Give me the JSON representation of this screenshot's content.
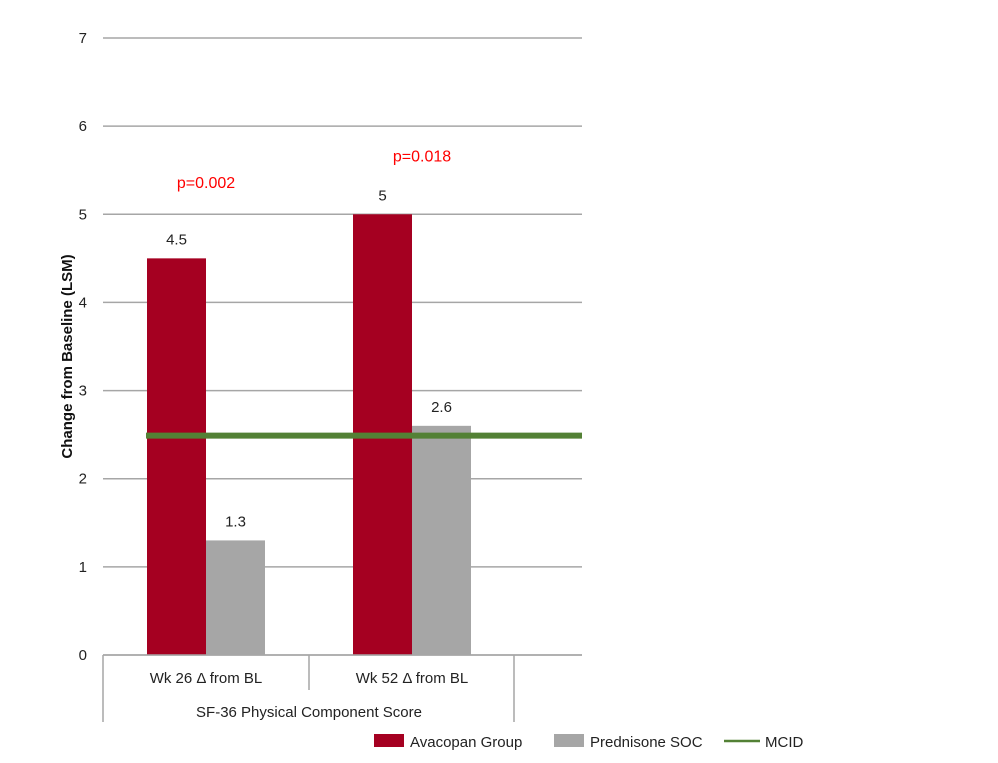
{
  "chart_data": {
    "type": "bar",
    "title": "",
    "xlabel": "",
    "ylabel": "Change from Baseline (LSM)",
    "ylim": [
      0,
      7
    ],
    "yticks": [
      0,
      1,
      2,
      3,
      4,
      5,
      6,
      7
    ],
    "grid": true,
    "group_label": "SF-36 Physical Component Score",
    "categories": [
      "Wk 26 Δ from BL",
      "Wk 52 Δ from BL"
    ],
    "series": [
      {
        "name": "Avacopan Group",
        "values": [
          4.5,
          5
        ],
        "labels": [
          "4.5",
          "5"
        ],
        "color": "#a50021"
      },
      {
        "name": "Prednisone SOC",
        "values": [
          1.3,
          2.6
        ],
        "labels": [
          "1.3",
          "2.6"
        ],
        "color": "#a6a6a6"
      }
    ],
    "reference_line": {
      "name": "MCID",
      "value": 2.5,
      "color": "#538135"
    },
    "annotations": [
      {
        "text": "p=0.002",
        "category": 0,
        "value": 5.3,
        "color": "#ff0000"
      },
      {
        "text": "p=0.018",
        "category": 1,
        "value": 5.6,
        "color": "#ff0000"
      }
    ],
    "legend": {
      "placement": "bottom-right",
      "items": [
        "Avacopan Group",
        "Prednisone SOC",
        "MCID"
      ]
    }
  }
}
